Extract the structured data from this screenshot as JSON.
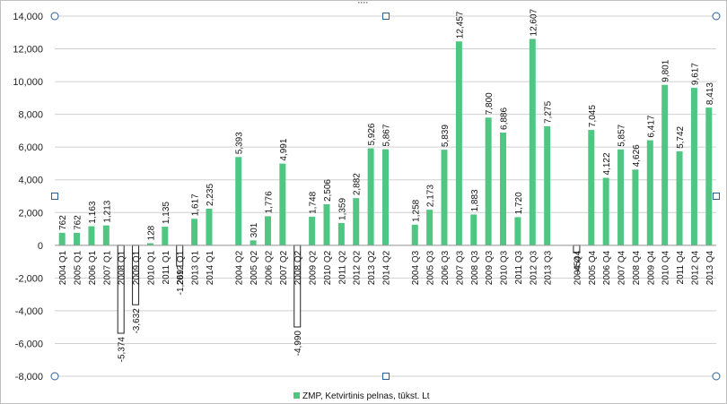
{
  "chart_data": {
    "type": "bar",
    "title": "",
    "xlabel": "",
    "ylabel": "",
    "ylim": [
      -8000,
      14000
    ],
    "yticks": [
      -8000,
      -6000,
      -4000,
      -2000,
      0,
      2000,
      4000,
      6000,
      8000,
      10000,
      12000,
      14000
    ],
    "ytick_labels": [
      "-8,000",
      "-6,000",
      "-4,000",
      "-2,000",
      "0",
      "2,000",
      "4,000",
      "6,000",
      "8,000",
      "10,000",
      "12,000",
      "14,000"
    ],
    "grid": true,
    "legend_position": "bottom",
    "colors": {
      "positive": "#4fc783",
      "negative": "#ffffff",
      "negative_border": "#222222",
      "grid": "#d0d0d0",
      "handles": "#2a5f9e",
      "frame": "#bfbfbf"
    },
    "series": [
      {
        "name": "ZMP, Ketvirtinis pelnas, tūkst. Lt",
        "points": [
          {
            "category": "2004 Q1",
            "value": 762,
            "label": "762"
          },
          {
            "category": "2005 Q1",
            "value": 762,
            "label": "762"
          },
          {
            "category": "2006 Q1",
            "value": 1163,
            "label": "1,163"
          },
          {
            "category": "2007 Q1",
            "value": 1213,
            "label": "1,213"
          },
          {
            "category": "2008 Q1",
            "value": -5374,
            "label": "-5,374"
          },
          {
            "category": "2009 Q1",
            "value": -3632,
            "label": "-3,632"
          },
          {
            "category": "2010 Q1",
            "value": 128,
            "label": "128"
          },
          {
            "category": "2011 Q1",
            "value": 1135,
            "label": "1,135"
          },
          {
            "category": "2012 Q1",
            "value": -1269,
            "label": "-1,269"
          },
          {
            "category": "2013 Q1",
            "value": 1617,
            "label": "1,617"
          },
          {
            "category": "2014 Q1",
            "value": 2235,
            "label": "2,235"
          },
          {
            "category": "",
            "value": null,
            "label": ""
          },
          {
            "category": "2004 Q2",
            "value": 5393,
            "label": "5,393"
          },
          {
            "category": "2005 Q2",
            "value": 301,
            "label": "301"
          },
          {
            "category": "2006 Q2",
            "value": 1776,
            "label": "1,776"
          },
          {
            "category": "2007 Q2",
            "value": 4991,
            "label": "4,991"
          },
          {
            "category": "2008 Q2",
            "value": -4990,
            "label": "-4,990"
          },
          {
            "category": "2009 Q2",
            "value": 1748,
            "label": "1,748"
          },
          {
            "category": "2010 Q2",
            "value": 2506,
            "label": "2,506"
          },
          {
            "category": "2011 Q2",
            "value": 1359,
            "label": "1,359"
          },
          {
            "category": "2012 Q2",
            "value": 2882,
            "label": "2,882"
          },
          {
            "category": "2013 Q2",
            "value": 5926,
            "label": "5,926"
          },
          {
            "category": "2014 Q2",
            "value": 5867,
            "label": "5,867"
          },
          {
            "category": "",
            "value": null,
            "label": ""
          },
          {
            "category": "2004 Q3",
            "value": 1258,
            "label": "1,258"
          },
          {
            "category": "2005 Q3",
            "value": 2173,
            "label": "2,173"
          },
          {
            "category": "2006 Q3",
            "value": 5839,
            "label": "5,839"
          },
          {
            "category": "2007 Q3",
            "value": 12457,
            "label": "12,457"
          },
          {
            "category": "2008 Q3",
            "value": 1883,
            "label": "1,883"
          },
          {
            "category": "2009 Q3",
            "value": 7800,
            "label": "7,800"
          },
          {
            "category": "2010 Q3",
            "value": 6886,
            "label": "6,886"
          },
          {
            "category": "2011 Q3",
            "value": 1720,
            "label": "1,720"
          },
          {
            "category": "2012 Q3",
            "value": 12607,
            "label": "12,607"
          },
          {
            "category": "2013 Q3",
            "value": 7275,
            "label": "7,275"
          },
          {
            "category": "",
            "value": null,
            "label": ""
          },
          {
            "category": "2004 Q4",
            "value": -454,
            "label": "-454"
          },
          {
            "category": "2005 Q4",
            "value": 7045,
            "label": "7,045"
          },
          {
            "category": "2006 Q4",
            "value": 4122,
            "label": "4,122"
          },
          {
            "category": "2007 Q4",
            "value": 5857,
            "label": "5,857"
          },
          {
            "category": "2008 Q4",
            "value": 4626,
            "label": "4,626"
          },
          {
            "category": "2009 Q4",
            "value": 6417,
            "label": "6,417"
          },
          {
            "category": "2010 Q4",
            "value": 9801,
            "label": "9,801"
          },
          {
            "category": "2011 Q4",
            "value": 5742,
            "label": "5,742"
          },
          {
            "category": "2012 Q4",
            "value": 9617,
            "label": "9,617"
          },
          {
            "category": "2013 Q4",
            "value": 8413,
            "label": "8,413"
          }
        ]
      }
    ]
  }
}
